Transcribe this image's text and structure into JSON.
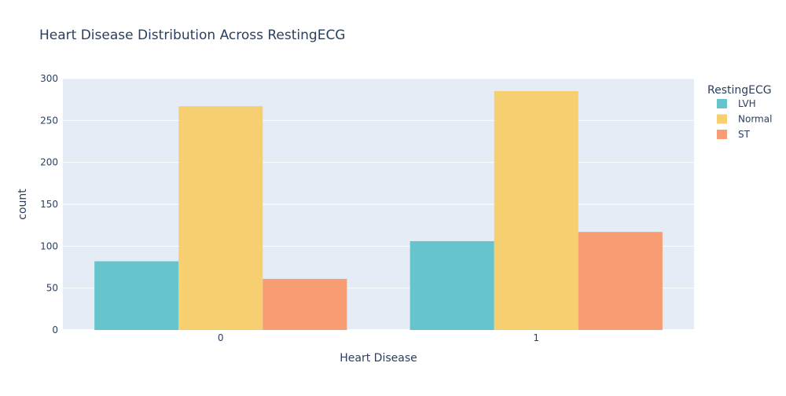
{
  "chart_data": {
    "type": "bar",
    "title": "Heart Disease Distribution Across RestingECG",
    "xlabel": "Heart Disease",
    "ylabel": "count",
    "categories": [
      "0",
      "1"
    ],
    "ylim": [
      0,
      300
    ],
    "yticks": [
      0,
      50,
      100,
      150,
      200,
      250,
      300
    ],
    "grid": true,
    "barmode": "group",
    "legend": {
      "title": "RestingECG",
      "placement": "right-top"
    },
    "series": [
      {
        "name": "LVH",
        "values": [
          82,
          106
        ],
        "color": "#66c5cc"
      },
      {
        "name": "Normal",
        "values": [
          267,
          285
        ],
        "color": "#f6cf71"
      },
      {
        "name": "ST",
        "values": [
          61,
          117
        ],
        "color": "#f89c74"
      }
    ],
    "plot_background": "#e5ecf6",
    "gridline_color": "#ffffff"
  }
}
